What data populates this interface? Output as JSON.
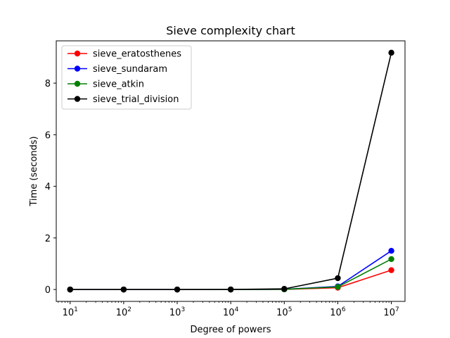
{
  "chart_data": {
    "type": "line",
    "title": "Sieve complexity chart",
    "xlabel": "Degree of powers",
    "ylabel": "Time (seconds)",
    "x_scale": "log",
    "x": [
      10,
      100,
      1000,
      10000,
      100000,
      1000000,
      10000000
    ],
    "x_tick_labels": [
      {
        "base": "10",
        "exp": "1"
      },
      {
        "base": "10",
        "exp": "2"
      },
      {
        "base": "10",
        "exp": "3"
      },
      {
        "base": "10",
        "exp": "4"
      },
      {
        "base": "10",
        "exp": "5"
      },
      {
        "base": "10",
        "exp": "6"
      },
      {
        "base": "10",
        "exp": "7"
      }
    ],
    "y_ticks": [
      0,
      2,
      4,
      6,
      8
    ],
    "y_tick_labels": [
      "0",
      "2",
      "4",
      "6",
      "8"
    ],
    "xlim": [
      5.5,
      18000000
    ],
    "ylim": [
      -0.46,
      9.64
    ],
    "grid": false,
    "legend_position": "upper-left",
    "series": [
      {
        "name": "sieve_eratosthenes",
        "color": "#ff0000",
        "values": [
          0,
          0,
          0,
          0,
          0.005,
          0.07,
          0.75
        ]
      },
      {
        "name": "sieve_sundaram",
        "color": "#0000ff",
        "values": [
          0,
          0,
          0,
          0,
          0.008,
          0.12,
          1.5
        ]
      },
      {
        "name": "sieve_atkin",
        "color": "#008000",
        "values": [
          0,
          0,
          0,
          0,
          0.008,
          0.1,
          1.18
        ]
      },
      {
        "name": "sieve_trial_division",
        "color": "#000000",
        "values": [
          0,
          0,
          0,
          0.003,
          0.025,
          0.44,
          9.18
        ]
      }
    ]
  }
}
